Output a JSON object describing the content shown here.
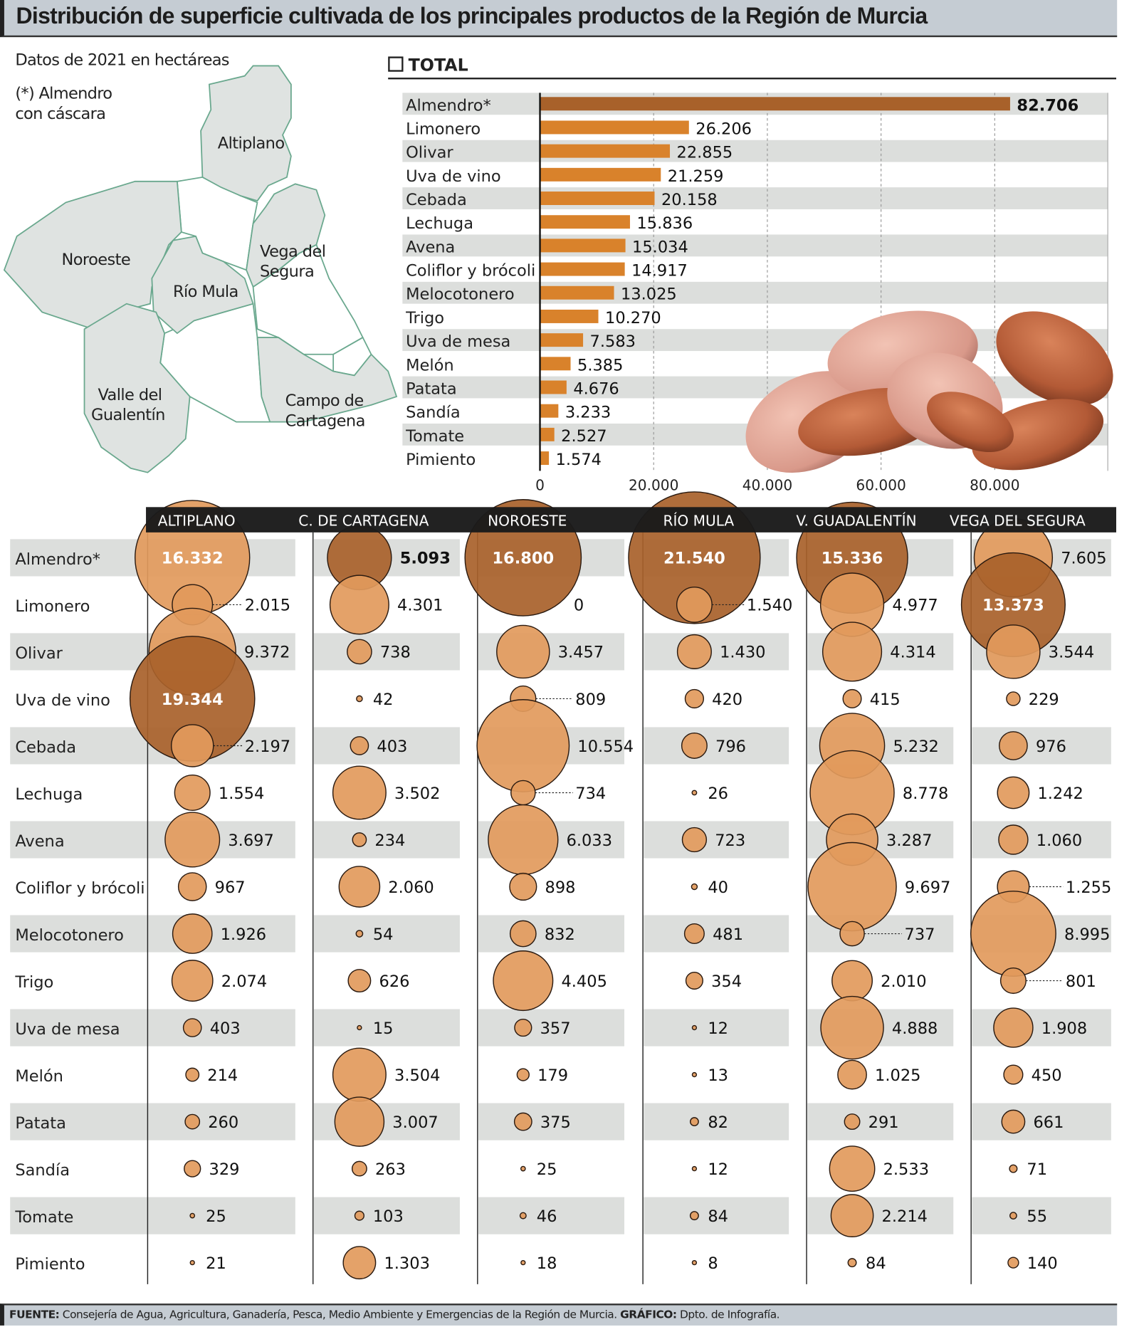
{
  "header": {
    "title": "Distribución de superficie cultivada de los principales productos de la Región de Murcia"
  },
  "notes": {
    "subtitle": "Datos de 2021 en hectáreas",
    "footnote_line1": "(*) Almendro",
    "footnote_line2": "con cáscara"
  },
  "map": {
    "regions": [
      "Altiplano",
      "Noroeste",
      "Río Mula",
      "Vega del Segura",
      "Valle del Guadalentín",
      "Campo de Cartagena"
    ],
    "labels": {
      "altiplano": "Altiplano",
      "noroeste": "Noroeste",
      "rio_mula": "Río Mula",
      "vega_1": "Vega del",
      "vega_2": "Segura",
      "valle_1": "Valle del",
      "valle_2": "Gualentín",
      "campo_1": "Campo de",
      "campo_2": "Cartagena"
    },
    "colors": {
      "highlight": "#dfe3e1",
      "other": "#ffffff",
      "border": "#6aa88e"
    }
  },
  "colors": {
    "bar": "#d9822b",
    "bar_max": "#a8612a",
    "bubble": "#e29a5c",
    "bubble_max": "#a8612a",
    "stripe": "#dcdedc"
  },
  "chart_data": [
    {
      "type": "bar",
      "title": "TOTAL",
      "orientation": "horizontal",
      "categories": [
        "Almendro*",
        "Limonero",
        "Olivar",
        "Uva de vino",
        "Cebada",
        "Lechuga",
        "Avena",
        "Coliflor y brócoli",
        "Melocotonero",
        "Trigo",
        "Uva de mesa",
        "Melón",
        "Patata",
        "Sandía",
        "Tomate",
        "Pimiento"
      ],
      "values": [
        82706,
        26206,
        22855,
        21259,
        20158,
        15836,
        15034,
        14917,
        13025,
        10270,
        7583,
        5385,
        4676,
        3233,
        2527,
        1574
      ],
      "xlim": [
        0,
        100000
      ],
      "xticks": [
        0,
        20000,
        40000,
        60000,
        80000
      ],
      "xtick_labels": [
        "0",
        "20.000",
        "40.000",
        "60.000",
        "80.000"
      ],
      "grid": "vertical dashed"
    },
    {
      "type": "bubble-matrix",
      "rows": [
        "Almendro*",
        "Limonero",
        "Olivar",
        "Uva de vino",
        "Cebada",
        "Lechuga",
        "Avena",
        "Coliflor y brócoli",
        "Melocotonero",
        "Trigo",
        "Uva de mesa",
        "Melón",
        "Patata",
        "Sandía",
        "Tomate",
        "Pimiento"
      ],
      "columns": [
        {
          "name": "ALTIPLANO",
          "values": [
            16332,
            2015,
            9372,
            19344,
            2197,
            1554,
            3697,
            967,
            1926,
            2074,
            403,
            214,
            260,
            329,
            25,
            21
          ]
        },
        {
          "name": "C. DE CARTAGENA",
          "values": [
            5093,
            4301,
            738,
            42,
            403,
            3502,
            234,
            2060,
            54,
            626,
            15,
            3504,
            3007,
            263,
            103,
            1303
          ]
        },
        {
          "name": "NOROESTE",
          "values": [
            16800,
            0,
            3457,
            809,
            10554,
            734,
            6033,
            898,
            832,
            4405,
            357,
            179,
            375,
            25,
            46,
            18
          ]
        },
        {
          "name": "RÍO MULA",
          "values": [
            21540,
            1540,
            1430,
            420,
            796,
            26,
            723,
            40,
            481,
            354,
            12,
            13,
            82,
            12,
            84,
            8
          ]
        },
        {
          "name": "V. GUADALENTÍN",
          "values": [
            15336,
            4977,
            4314,
            415,
            5232,
            8778,
            3287,
            9697,
            737,
            2010,
            4888,
            1025,
            291,
            2533,
            2214,
            84
          ]
        },
        {
          "name": "VEGA DEL SEGURA",
          "values": [
            7605,
            13373,
            3544,
            229,
            976,
            1242,
            1060,
            1255,
            8995,
            801,
            1908,
            450,
            661,
            71,
            55,
            140
          ]
        }
      ],
      "encoding": "bubble area proportional to hectares; largest value per column in dark brown"
    }
  ],
  "footer": {
    "source_label": "FUENTE:",
    "source_text": " Consejería de Agua, Agricultura, Ganadería, Pesca, Medio Ambiente y Emergencias de la Región de Murcia. ",
    "graphic_label": "GRÁFICO:",
    "graphic_text": " Dpto. de Infografía."
  }
}
